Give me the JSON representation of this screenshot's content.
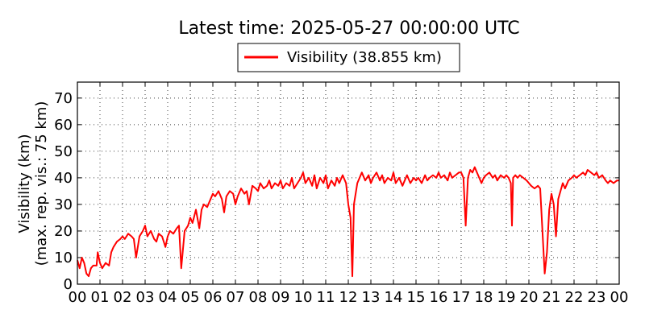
{
  "chart_data": {
    "type": "line",
    "title": "Latest time: 2025-05-27 00:00:00 UTC",
    "ylabel_line1": "Visibility (km)",
    "ylabel_line2": "(max. rep. vis.: 75 km)",
    "xlabel": "",
    "x_unit": "hour (UTC)",
    "xlim": [
      0,
      24
    ],
    "ylim": [
      0,
      76
    ],
    "xticks": [
      0,
      1,
      2,
      3,
      4,
      5,
      6,
      7,
      8,
      9,
      10,
      11,
      12,
      13,
      14,
      15,
      16,
      17,
      18,
      19,
      20,
      21,
      22,
      23,
      24
    ],
    "xtick_labels": [
      "00",
      "01",
      "02",
      "03",
      "04",
      "05",
      "06",
      "07",
      "08",
      "09",
      "10",
      "11",
      "12",
      "13",
      "14",
      "15",
      "16",
      "17",
      "18",
      "19",
      "20",
      "21",
      "22",
      "23",
      "00"
    ],
    "yticks": [
      0,
      10,
      20,
      30,
      40,
      50,
      60,
      70
    ],
    "ytick_labels": [
      "0",
      "10",
      "20",
      "30",
      "40",
      "50",
      "60",
      "70"
    ],
    "grid": true,
    "legend_position": "top-center",
    "series": [
      {
        "name": "Visibility (38.855 km)",
        "color": "#ff0000",
        "points": [
          [
            0.0,
            9
          ],
          [
            0.1,
            6
          ],
          [
            0.2,
            10
          ],
          [
            0.3,
            8
          ],
          [
            0.4,
            4
          ],
          [
            0.5,
            3
          ],
          [
            0.6,
            6
          ],
          [
            0.7,
            7
          ],
          [
            0.85,
            7
          ],
          [
            0.9,
            12
          ],
          [
            1.0,
            8
          ],
          [
            1.1,
            6
          ],
          [
            1.25,
            8
          ],
          [
            1.4,
            7
          ],
          [
            1.5,
            12
          ],
          [
            1.6,
            14
          ],
          [
            1.75,
            16
          ],
          [
            1.9,
            17
          ],
          [
            2.0,
            18
          ],
          [
            2.1,
            17
          ],
          [
            2.25,
            19
          ],
          [
            2.4,
            18
          ],
          [
            2.5,
            17
          ],
          [
            2.6,
            10
          ],
          [
            2.75,
            18
          ],
          [
            2.9,
            20
          ],
          [
            3.0,
            22
          ],
          [
            3.1,
            18
          ],
          [
            3.25,
            20
          ],
          [
            3.4,
            17
          ],
          [
            3.5,
            16
          ],
          [
            3.6,
            19
          ],
          [
            3.75,
            18
          ],
          [
            3.9,
            14
          ],
          [
            4.0,
            18
          ],
          [
            4.1,
            20
          ],
          [
            4.25,
            19
          ],
          [
            4.4,
            21
          ],
          [
            4.5,
            22
          ],
          [
            4.6,
            6
          ],
          [
            4.75,
            20
          ],
          [
            4.9,
            22
          ],
          [
            5.0,
            25
          ],
          [
            5.1,
            23
          ],
          [
            5.25,
            28
          ],
          [
            5.4,
            21
          ],
          [
            5.5,
            28
          ],
          [
            5.6,
            30
          ],
          [
            5.75,
            29
          ],
          [
            5.9,
            32
          ],
          [
            6.0,
            34
          ],
          [
            6.1,
            33
          ],
          [
            6.25,
            35
          ],
          [
            6.4,
            32
          ],
          [
            6.5,
            27
          ],
          [
            6.6,
            33
          ],
          [
            6.75,
            35
          ],
          [
            6.9,
            34
          ],
          [
            7.0,
            30
          ],
          [
            7.1,
            33
          ],
          [
            7.25,
            36
          ],
          [
            7.4,
            34
          ],
          [
            7.5,
            35
          ],
          [
            7.6,
            30
          ],
          [
            7.75,
            37
          ],
          [
            7.9,
            36
          ],
          [
            8.0,
            35
          ],
          [
            8.1,
            38
          ],
          [
            8.25,
            36
          ],
          [
            8.4,
            37
          ],
          [
            8.5,
            39
          ],
          [
            8.6,
            36
          ],
          [
            8.75,
            38
          ],
          [
            8.9,
            37
          ],
          [
            9.0,
            39
          ],
          [
            9.1,
            36
          ],
          [
            9.25,
            38
          ],
          [
            9.4,
            37
          ],
          [
            9.5,
            40
          ],
          [
            9.6,
            36
          ],
          [
            9.75,
            38
          ],
          [
            9.9,
            40
          ],
          [
            10.0,
            42
          ],
          [
            10.1,
            38
          ],
          [
            10.25,
            40
          ],
          [
            10.4,
            37
          ],
          [
            10.5,
            41
          ],
          [
            10.6,
            36
          ],
          [
            10.75,
            40
          ],
          [
            10.9,
            38
          ],
          [
            11.0,
            41
          ],
          [
            11.1,
            36
          ],
          [
            11.25,
            39
          ],
          [
            11.4,
            37
          ],
          [
            11.5,
            40
          ],
          [
            11.6,
            38
          ],
          [
            11.75,
            41
          ],
          [
            11.9,
            38
          ],
          [
            12.0,
            30
          ],
          [
            12.1,
            25
          ],
          [
            12.18,
            3
          ],
          [
            12.25,
            30
          ],
          [
            12.4,
            38
          ],
          [
            12.5,
            40
          ],
          [
            12.6,
            42
          ],
          [
            12.75,
            39
          ],
          [
            12.9,
            41
          ],
          [
            13.0,
            38
          ],
          [
            13.1,
            40
          ],
          [
            13.25,
            42
          ],
          [
            13.4,
            39
          ],
          [
            13.5,
            41
          ],
          [
            13.6,
            38
          ],
          [
            13.75,
            40
          ],
          [
            13.9,
            39
          ],
          [
            14.0,
            42
          ],
          [
            14.1,
            38
          ],
          [
            14.25,
            40
          ],
          [
            14.4,
            37
          ],
          [
            14.5,
            39
          ],
          [
            14.6,
            41
          ],
          [
            14.75,
            38
          ],
          [
            14.9,
            40
          ],
          [
            15.0,
            39
          ],
          [
            15.1,
            40
          ],
          [
            15.25,
            38
          ],
          [
            15.4,
            41
          ],
          [
            15.5,
            39
          ],
          [
            15.6,
            40
          ],
          [
            15.75,
            41
          ],
          [
            15.9,
            40
          ],
          [
            16.0,
            42
          ],
          [
            16.1,
            40
          ],
          [
            16.25,
            41
          ],
          [
            16.4,
            39
          ],
          [
            16.5,
            42
          ],
          [
            16.6,
            40
          ],
          [
            16.75,
            41
          ],
          [
            16.9,
            42
          ],
          [
            17.0,
            42
          ],
          [
            17.1,
            40
          ],
          [
            17.2,
            22
          ],
          [
            17.3,
            40
          ],
          [
            17.4,
            43
          ],
          [
            17.5,
            42
          ],
          [
            17.6,
            44
          ],
          [
            17.7,
            42
          ],
          [
            17.8,
            40
          ],
          [
            17.9,
            38
          ],
          [
            18.0,
            40
          ],
          [
            18.1,
            41
          ],
          [
            18.25,
            42
          ],
          [
            18.4,
            40
          ],
          [
            18.5,
            41
          ],
          [
            18.6,
            39
          ],
          [
            18.75,
            41
          ],
          [
            18.9,
            40
          ],
          [
            19.0,
            41
          ],
          [
            19.1,
            40
          ],
          [
            19.2,
            38
          ],
          [
            19.25,
            22
          ],
          [
            19.3,
            40
          ],
          [
            19.4,
            41
          ],
          [
            19.5,
            40
          ],
          [
            19.6,
            41
          ],
          [
            19.75,
            40
          ],
          [
            19.9,
            39
          ],
          [
            20.0,
            38
          ],
          [
            20.1,
            37
          ],
          [
            20.25,
            36
          ],
          [
            20.4,
            37
          ],
          [
            20.5,
            36
          ],
          [
            20.6,
            20
          ],
          [
            20.7,
            4
          ],
          [
            20.8,
            12
          ],
          [
            20.9,
            28
          ],
          [
            21.0,
            34
          ],
          [
            21.1,
            30
          ],
          [
            21.2,
            18
          ],
          [
            21.3,
            32
          ],
          [
            21.4,
            35
          ],
          [
            21.5,
            38
          ],
          [
            21.6,
            36
          ],
          [
            21.75,
            39
          ],
          [
            21.9,
            40
          ],
          [
            22.0,
            41
          ],
          [
            22.1,
            40
          ],
          [
            22.25,
            41
          ],
          [
            22.4,
            42
          ],
          [
            22.5,
            41
          ],
          [
            22.6,
            43
          ],
          [
            22.75,
            42
          ],
          [
            22.9,
            41
          ],
          [
            23.0,
            42
          ],
          [
            23.1,
            40
          ],
          [
            23.25,
            41
          ],
          [
            23.4,
            39
          ],
          [
            23.5,
            38
          ],
          [
            23.6,
            39
          ],
          [
            23.75,
            38
          ],
          [
            23.9,
            39
          ],
          [
            24.0,
            39
          ]
        ]
      }
    ]
  }
}
